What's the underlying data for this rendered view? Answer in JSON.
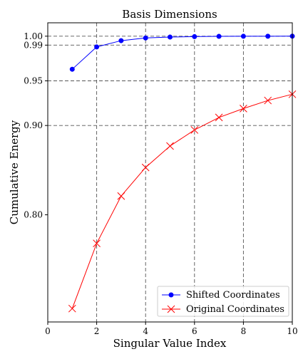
{
  "chart_data": {
    "type": "line",
    "title": "Basis Dimensions",
    "xlabel": "Singular Value Index",
    "ylabel": "Cumulative Energy",
    "xlim": [
      0,
      10
    ],
    "ylim": [
      0.68,
      1.015
    ],
    "x_ticks": [
      "0",
      "2",
      "4",
      "6",
      "8",
      "10"
    ],
    "y_ticks": [
      "0.80",
      "0.90",
      "0.95",
      "0.99",
      "1.00"
    ],
    "grid": "dashed reference lines at x = 2, 4, 6, 8 and y = 0.90, 0.95, 0.99, 1.00",
    "legend_position": "lower-right",
    "series": [
      {
        "name": "Shifted Coordinates",
        "color": "#0000ff",
        "marker": "circle",
        "x": [
          1,
          2,
          3,
          4,
          5,
          6,
          7,
          8,
          9,
          10
        ],
        "values": [
          0.963,
          0.988,
          0.995,
          0.998,
          0.999,
          0.9995,
          0.9998,
          0.9999,
          0.99995,
          1.0
        ]
      },
      {
        "name": "Original Coordinates",
        "color": "#ff0000",
        "marker": "x",
        "x": [
          1,
          2,
          3,
          4,
          5,
          6,
          7,
          8,
          9,
          10
        ],
        "values": [
          0.695,
          0.768,
          0.821,
          0.853,
          0.877,
          0.895,
          0.909,
          0.919,
          0.928,
          0.935
        ]
      }
    ]
  }
}
